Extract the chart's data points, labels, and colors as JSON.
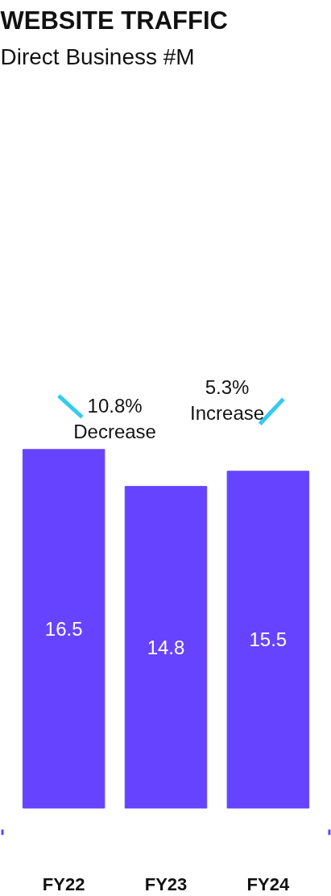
{
  "chart_data": {
    "type": "bar",
    "title": "WEBSITE TRAFFIC",
    "subtitle": "Direct Business #M",
    "categories": [
      "FY22",
      "FY23",
      "FY24"
    ],
    "values": [
      16.5,
      14.8,
      15.5
    ],
    "color": "#6644ff",
    "data_labels": true,
    "annotations": [
      "10.8%\nDecrease",
      "5.3%\nIncrease"
    ],
    "grid": false
  }
}
